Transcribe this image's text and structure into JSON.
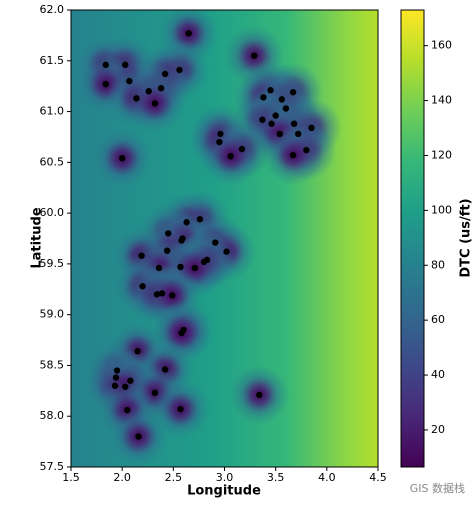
{
  "chart_data": {
    "type": "scatter",
    "xlabel": "Longitude",
    "ylabel": "Latitude",
    "x": [
      2.65,
      3.29,
      1.84,
      2.03,
      2.56,
      2.42,
      2.07,
      1.84,
      2.38,
      2.26,
      2.14,
      2.32,
      3.45,
      3.67,
      3.38,
      3.56,
      3.6,
      3.5,
      3.37,
      3.46,
      3.68,
      3.85,
      3.72,
      3.54,
      2.96,
      2.95,
      3.17,
      3.06,
      3.8,
      3.67,
      2.0,
      2.76,
      2.63,
      2.45,
      2.59,
      2.58,
      2.91,
      2.44,
      3.02,
      2.19,
      2.83,
      2.8,
      2.57,
      2.36,
      2.71,
      2.2,
      2.39,
      2.34,
      2.49,
      2.6,
      2.58,
      2.15,
      2.42,
      1.95,
      1.94,
      2.08,
      1.93,
      2.03,
      2.32,
      3.34,
      2.05,
      2.57,
      2.16
    ],
    "y": [
      61.77,
      61.55,
      61.46,
      61.46,
      61.41,
      61.37,
      61.3,
      61.27,
      61.23,
      61.2,
      61.13,
      61.08,
      61.21,
      61.19,
      61.14,
      61.12,
      61.03,
      60.96,
      60.92,
      60.88,
      60.88,
      60.84,
      60.78,
      60.78,
      60.78,
      60.7,
      60.63,
      60.56,
      60.62,
      60.57,
      60.54,
      59.94,
      59.91,
      59.8,
      59.75,
      59.73,
      59.71,
      59.63,
      59.62,
      59.58,
      59.54,
      59.52,
      59.47,
      59.46,
      59.46,
      59.28,
      59.21,
      59.2,
      59.19,
      58.85,
      58.82,
      58.64,
      58.46,
      58.45,
      58.38,
      58.35,
      58.3,
      58.29,
      58.23,
      58.21,
      58.06,
      58.07,
      57.8
    ],
    "color": "#000000",
    "xlim": [
      1.5,
      4.5
    ],
    "xticks": [
      {
        "value": 1.5,
        "label": "1.5"
      },
      {
        "value": 2,
        "label": "2.0"
      },
      {
        "value": 2.5,
        "label": "2.5"
      },
      {
        "value": 3,
        "label": "3.0"
      },
      {
        "value": 3.5,
        "label": "3.5"
      },
      {
        "value": 4,
        "label": "4.0"
      },
      {
        "value": 4.5,
        "label": "4.5"
      }
    ],
    "ylim": [
      57.5,
      62
    ],
    "yticks": [
      {
        "value": 57.5,
        "label": "57.5"
      },
      {
        "value": 58,
        "label": "58.0"
      },
      {
        "value": 58.5,
        "label": "58.5"
      },
      {
        "value": 59,
        "label": "59.0"
      },
      {
        "value": 59.5,
        "label": "59.5"
      },
      {
        "value": 60,
        "label": "60.0"
      },
      {
        "value": 60.5,
        "label": "60.5"
      },
      {
        "value": 61,
        "label": "61.0"
      },
      {
        "value": 61.5,
        "label": "61.5"
      },
      {
        "value": 62,
        "label": "62.0"
      }
    ],
    "colorbar": {
      "label": "DTC (us/ft)",
      "lim": [
        6.5,
        173
      ],
      "ticks": [
        20,
        40,
        60,
        80,
        100,
        120,
        140,
        160
      ],
      "colors": [
        "#440154",
        "#482878",
        "#3e4989",
        "#31688e",
        "#26828e",
        "#1f9e89",
        "#35b779",
        "#6ece58",
        "#b5de2b",
        "#fde725"
      ]
    },
    "watermark": "GIS 数据栈"
  }
}
